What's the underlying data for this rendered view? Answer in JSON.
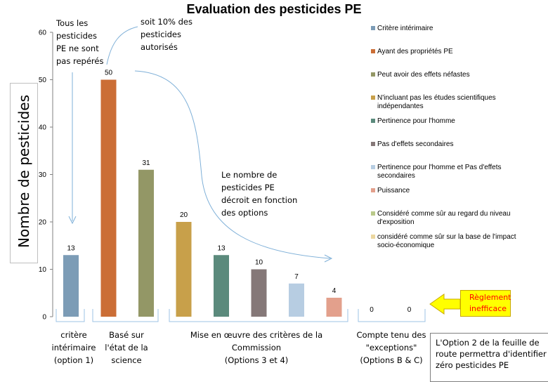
{
  "chart_data": {
    "type": "bar",
    "title": "Evaluation des pesticides PE",
    "ylabel": "Nombre de pesticides",
    "ylim": [
      0,
      60
    ],
    "yticks": [
      "0",
      "10",
      "20",
      "30",
      "40",
      "50",
      "60"
    ],
    "series": [
      {
        "name": "Critère intérimaire",
        "value": 13,
        "color": "#7c9cb6"
      },
      {
        "name": "Ayant des propriétés PE",
        "value": 50,
        "color": "#cb6e36"
      },
      {
        "name": "Peut avoir des effets néfastes",
        "value": 31,
        "color": "#939766"
      },
      {
        "name": "N'incluant pas les études scientifiques indépendantes",
        "value": 20,
        "color": "#c8a04a"
      },
      {
        "name": "Pertinence pour l'homme",
        "value": 13,
        "color": "#5b8a7c"
      },
      {
        "name": "Pas d'effets secondaires",
        "value": 10,
        "color": "#857878"
      },
      {
        "name": "Pertinence pour l'homme et Pas d'effets secondaires",
        "value": 7,
        "color": "#b7cde2"
      },
      {
        "name": "Puissance",
        "value": 4,
        "color": "#e3a08c"
      },
      {
        "name": "Considéré comme sûr au regard du niveau d'exposition",
        "value": 0,
        "color": "#b9c98a"
      },
      {
        "name": "considéré comme sûr sur la base de l'impact socio-économique",
        "value": 0,
        "color": "#ecd7a0"
      }
    ],
    "data_labels": [
      "13",
      "50",
      "31",
      "20",
      "13",
      "10",
      "7",
      "4",
      "0",
      "0"
    ],
    "groups": [
      {
        "lines": [
          "critère",
          "intérimaire",
          "(option 1)"
        ]
      },
      {
        "lines": [
          "Basé sur",
          "l'état de la",
          "science"
        ]
      },
      {
        "lines": [
          "Mise en œuvre des critères de la",
          "Commission",
          "(Options 3 et 4)"
        ]
      },
      {
        "lines": [
          "Compte tenu des",
          "\"exceptions\"",
          "(Options B & C)"
        ]
      }
    ],
    "legend_position": "right",
    "grid": false
  },
  "annotations": {
    "not_identified": [
      "Tous les",
      "pesticides",
      "PE ne sont",
      "pas repérés"
    ],
    "ten_percent": [
      "soit 10% des",
      "pesticides",
      "autorisés"
    ],
    "decreasing": [
      "Le nombre de",
      "pesticides PE",
      "décroit en fonction",
      "des options"
    ],
    "regulation": [
      "Règlement",
      "inefficace"
    ],
    "option2_note": [
      "L'Option 2 de la feuille de",
      "route permettra d'identifier",
      "zéro pesticides PE"
    ]
  }
}
